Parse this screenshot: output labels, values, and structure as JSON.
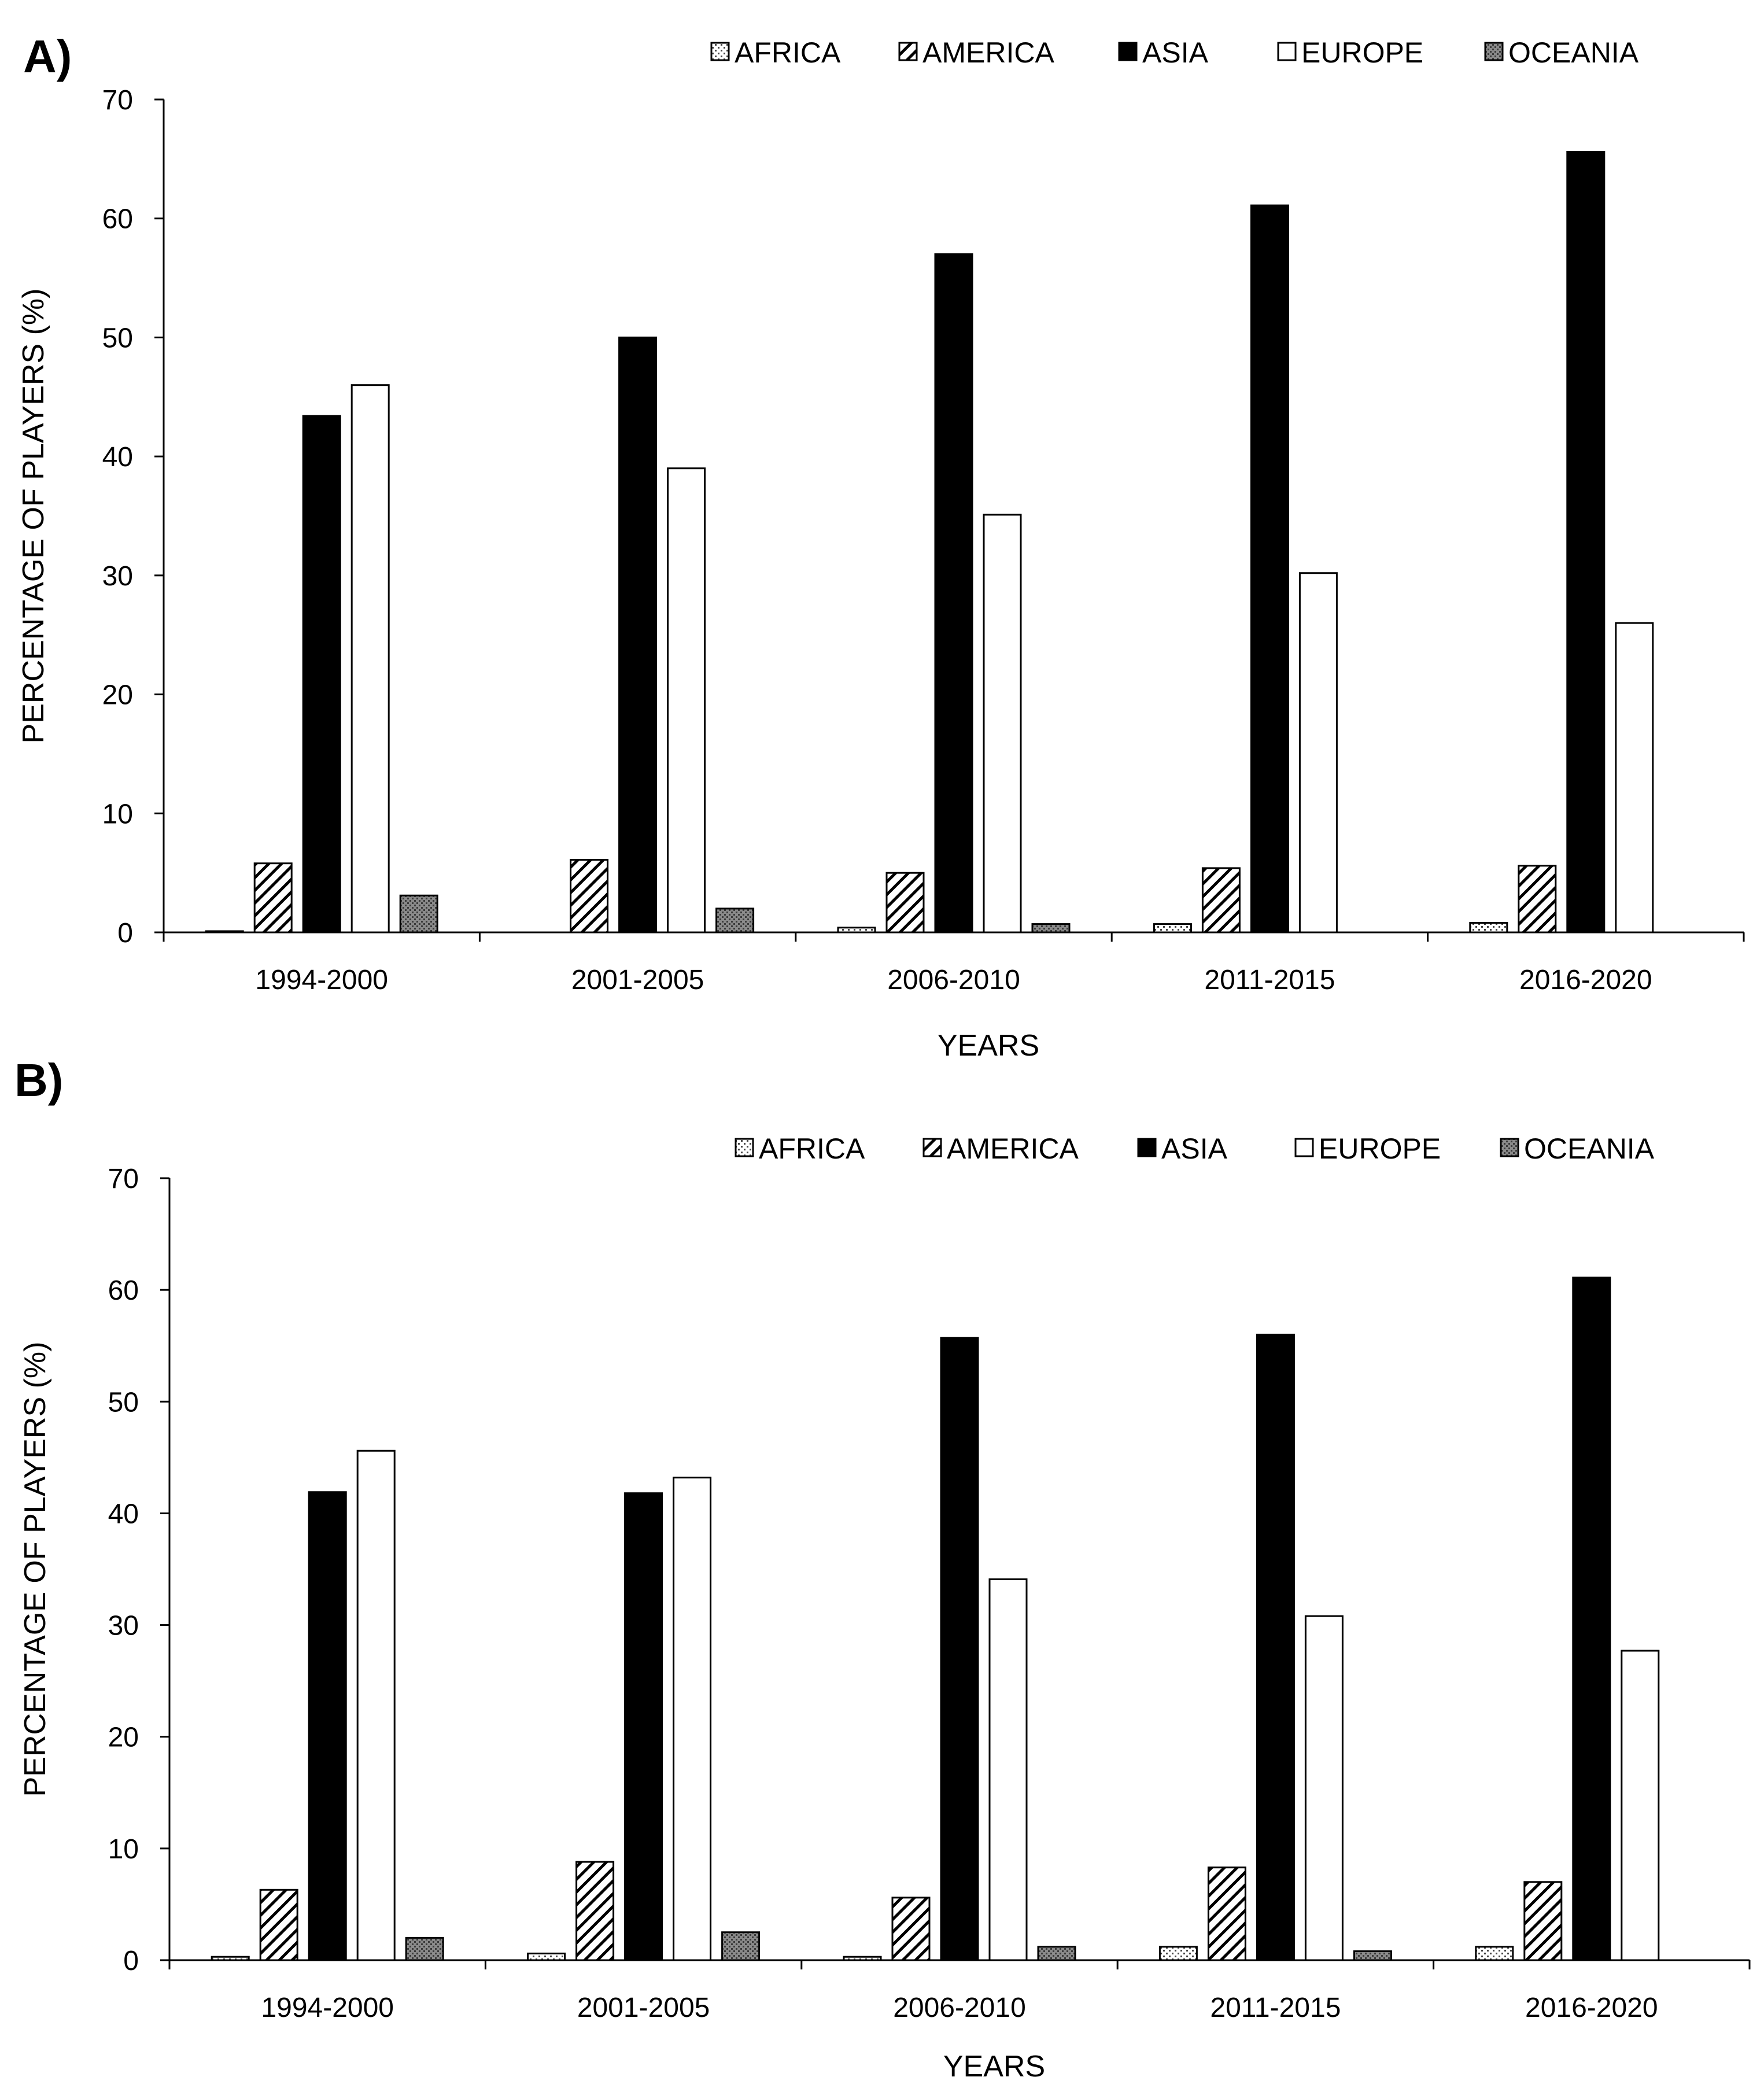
{
  "figure_labels": [
    "A)",
    "B)"
  ],
  "chart_data": [
    {
      "panel": "A)",
      "type": "bar",
      "title": "",
      "xlabel": "YEARS",
      "ylabel": "PERCENTAGE OF PLAYERS (%)",
      "ylim": [
        0,
        70
      ],
      "yticks": [
        0,
        10,
        20,
        30,
        40,
        50,
        60,
        70
      ],
      "grid": false,
      "legend_position": "top",
      "categories": [
        "1994-2000",
        "2001-2005",
        "2006-2010",
        "2011-2015",
        "2016-2020"
      ],
      "series": [
        {
          "name": "AFRICA",
          "values": [
            0.1,
            0,
            0.4,
            0.7,
            0.8
          ]
        },
        {
          "name": "AMERICA",
          "values": [
            5.8,
            6.1,
            5.0,
            5.4,
            5.6
          ]
        },
        {
          "name": "ASIA",
          "values": [
            43.4,
            50.0,
            57.0,
            61.1,
            65.6
          ]
        },
        {
          "name": "EUROPE",
          "values": [
            46.0,
            39.0,
            35.1,
            30.2,
            26.0
          ]
        },
        {
          "name": "OCEANIA",
          "values": [
            3.1,
            2.0,
            0.7,
            0,
            0
          ]
        }
      ]
    },
    {
      "panel": "B)",
      "type": "bar",
      "title": "",
      "xlabel": "YEARS",
      "ylabel": "PERCENTAGE OF PLAYERS (%)",
      "ylim": [
        0,
        70
      ],
      "yticks": [
        0,
        10,
        20,
        30,
        40,
        50,
        60,
        70
      ],
      "grid": false,
      "legend_position": "top",
      "categories": [
        "1994-2000",
        "2001-2005",
        "2006-2010",
        "2011-2015",
        "2016-2020"
      ],
      "series": [
        {
          "name": "AFRICA",
          "values": [
            0.3,
            0.6,
            0.3,
            1.2,
            1.2
          ]
        },
        {
          "name": "AMERICA",
          "values": [
            6.3,
            8.8,
            5.6,
            8.3,
            7.0
          ]
        },
        {
          "name": "ASIA",
          "values": [
            41.9,
            41.8,
            55.7,
            56.0,
            61.1
          ]
        },
        {
          "name": "EUROPE",
          "values": [
            45.6,
            43.2,
            34.1,
            30.8,
            27.7
          ]
        },
        {
          "name": "OCEANIA",
          "values": [
            2.0,
            2.5,
            1.2,
            0.8,
            0
          ]
        }
      ]
    }
  ]
}
